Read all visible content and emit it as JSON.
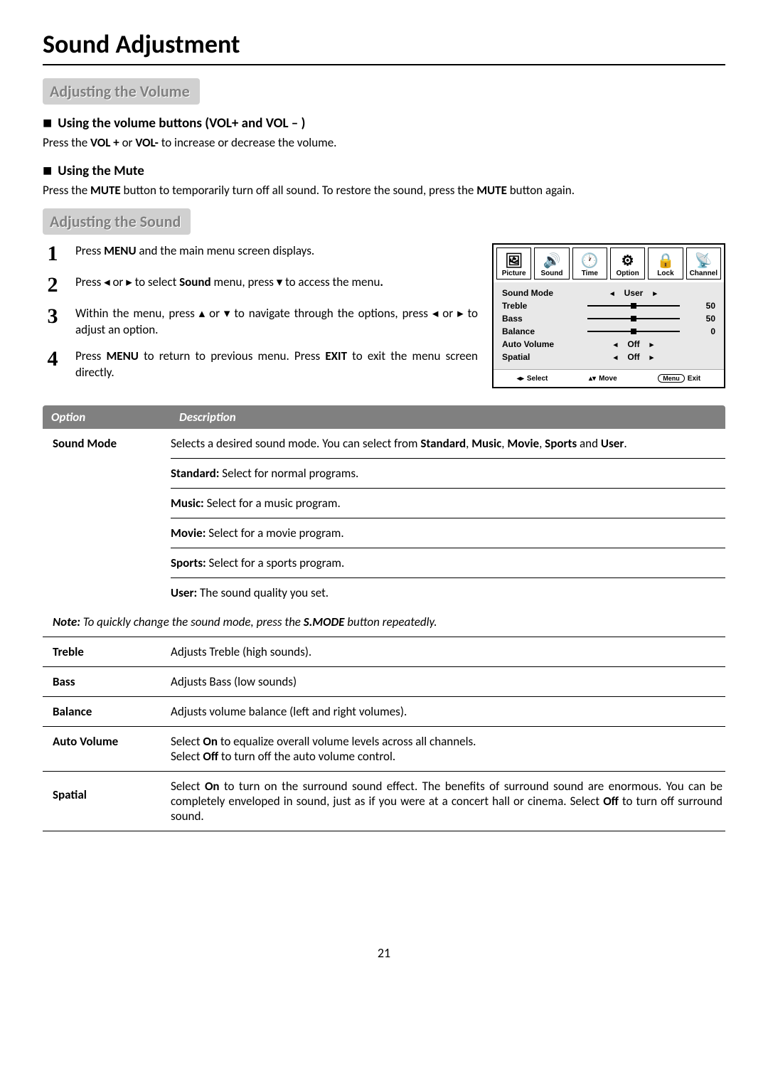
{
  "page_number": "21",
  "title": "Sound Adjustment",
  "section1": {
    "heading": "Adjusting the Volume",
    "sub1_heading": "Using the volume buttons (VOL+ and VOL – )",
    "sub1_text_pre": "Press the ",
    "sub1_text_b1": "VOL +",
    "sub1_text_mid": " or ",
    "sub1_text_b2": "VOL-",
    "sub1_text_post": " to increase or decrease the volume.",
    "sub2_heading": "Using the Mute",
    "sub2_text_pre": "Press the ",
    "sub2_text_b1": "MUTE",
    "sub2_text_mid": " button to temporarily turn off all sound.   To restore the sound, press the ",
    "sub2_text_b2": "MUTE",
    "sub2_text_post": " button again."
  },
  "section2": {
    "heading": "Adjusting the Sound",
    "steps": [
      {
        "n": "1",
        "pre": "Press ",
        "b1": "MENU",
        "post": " and the main menu screen displays."
      },
      {
        "n": "2",
        "pre": "Press  ◂ or ▸ to select ",
        "b1": "Sound",
        "mid": " menu,  press  ▾  to access the menu",
        "b2": ".",
        "post": ""
      },
      {
        "n": "3",
        "pre": "Within the menu, press  ▴  or  ▾ to navigate through the options,  press ◂ or  ▸ to adjust an option.",
        "b1": "",
        "post": ""
      },
      {
        "n": "4",
        "pre": "Press ",
        "b1": "MENU",
        "mid": " to return to previous menu. Press ",
        "b2": "EXIT",
        "post": " to exit the menu screen directly."
      }
    ]
  },
  "osd": {
    "tabs": [
      {
        "label": "Picture",
        "icon": "🖼"
      },
      {
        "label": "Sound",
        "icon": "🔊"
      },
      {
        "label": "Time",
        "icon": "🕐"
      },
      {
        "label": "Option",
        "icon": "⚙"
      },
      {
        "label": "Lock",
        "icon": "🔒"
      },
      {
        "label": "Channel",
        "icon": "📡"
      }
    ],
    "active_tab": 1,
    "rows": [
      {
        "label": "Sound Mode",
        "type": "arrows",
        "value": "User"
      },
      {
        "label": "Treble",
        "type": "slider",
        "pos": 50,
        "value": "50"
      },
      {
        "label": "Bass",
        "type": "slider",
        "pos": 50,
        "value": "50"
      },
      {
        "label": "Balance",
        "type": "slider",
        "pos": 50,
        "value": "0"
      },
      {
        "label": "Auto Volume",
        "type": "arrows",
        "value": "Off"
      },
      {
        "label": "Spatial",
        "type": "arrows",
        "value": "Off"
      }
    ],
    "footer": {
      "select": "Select",
      "move": "Move",
      "exit": "Exit",
      "menu": "Menu"
    },
    "bg": "#e8e8e8"
  },
  "table": {
    "header_option": "Option",
    "header_desc": "Description",
    "header_bg": "#808080",
    "sound_mode": {
      "label": "Sound Mode",
      "desc_pre": "Selects a desired sound mode.  You can select from ",
      "desc_b1": "Standard",
      "desc_c1": ", ",
      "desc_b2": "Music",
      "desc_c2": ", ",
      "desc_b3": "Movie",
      "desc_c3": ", ",
      "desc_b4": "Sports",
      "desc_c4": " and ",
      "desc_b5": "User",
      "desc_post": ".",
      "subs": [
        {
          "b": "Standard:",
          "t": " Select for normal programs."
        },
        {
          "b": "Music:",
          "t": " Select for a music program."
        },
        {
          "b": "Movie:",
          "t": " Select for a movie program."
        },
        {
          "b": "Sports:",
          "t": " Select for a sports program."
        },
        {
          "b": "User:",
          "t": " The sound quality you set."
        }
      ]
    },
    "note_pre": "Note:",
    "note_mid": " To quickly change the sound mode, press the ",
    "note_b": "S.MODE",
    "note_post": " button repeatedly.",
    "rows": [
      {
        "label": "Treble",
        "desc": "Adjusts Treble (high sounds)."
      },
      {
        "label": "Bass",
        "desc": "Adjusts Bass (low sounds)"
      },
      {
        "label": "Balance",
        "desc": "Adjusts volume balance (left and right volumes)."
      }
    ],
    "auto_volume": {
      "label": "Auto Volume",
      "l1_pre": "Select ",
      "l1_b": "On",
      "l1_post": " to equalize overall volume levels across all channels.",
      "l2_pre": "Select ",
      "l2_b": "Off",
      "l2_post": " to turn off the auto volume control."
    },
    "spatial": {
      "label": "Spatial",
      "l1_pre": "Select ",
      "l1_b": "On",
      "l1_post": " to turn on the surround sound effect. The benefits of surround sound are enormous. You can be completely enveloped in sound, just as if you were at a concert hall or cinema. Select ",
      "l2_b": "Off",
      "l2_post": " to turn off surround sound."
    }
  }
}
